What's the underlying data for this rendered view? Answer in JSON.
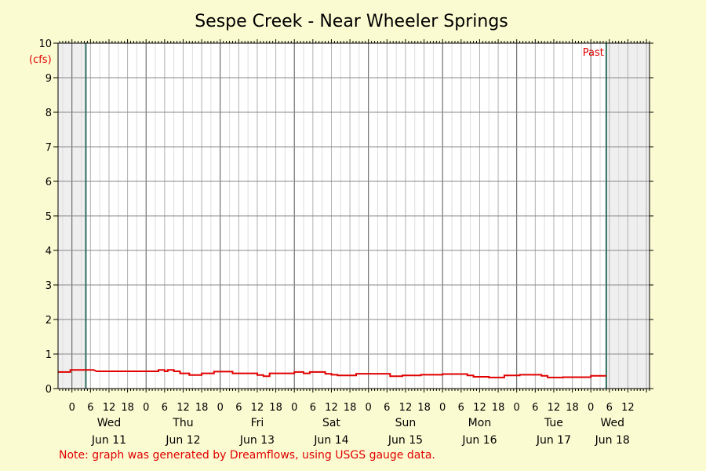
{
  "chart_data": {
    "type": "line",
    "title": "Sespe Creek - Near Wheeler Springs",
    "ylabel": "(cfs)",
    "ylim": [
      0,
      10
    ],
    "yticks": [
      0,
      1,
      2,
      3,
      4,
      5,
      6,
      7,
      8,
      9,
      10
    ],
    "x_unit": "hours since Jun 10 00:00",
    "xlim": [
      -4.5,
      187
    ],
    "x_tick_labels": [
      {
        "x": 0,
        "label": "0"
      },
      {
        "x": 6,
        "label": "6"
      },
      {
        "x": 12,
        "label": "12"
      },
      {
        "x": 18,
        "label": "18"
      },
      {
        "x": 24,
        "label": "0"
      },
      {
        "x": 30,
        "label": "6"
      },
      {
        "x": 36,
        "label": "12"
      },
      {
        "x": 42,
        "label": "18"
      },
      {
        "x": 48,
        "label": "0"
      },
      {
        "x": 54,
        "label": "6"
      },
      {
        "x": 60,
        "label": "12"
      },
      {
        "x": 66,
        "label": "18"
      },
      {
        "x": 72,
        "label": "0"
      },
      {
        "x": 78,
        "label": "6"
      },
      {
        "x": 84,
        "label": "12"
      },
      {
        "x": 90,
        "label": "18"
      },
      {
        "x": 96,
        "label": "0"
      },
      {
        "x": 102,
        "label": "6"
      },
      {
        "x": 108,
        "label": "12"
      },
      {
        "x": 114,
        "label": "18"
      },
      {
        "x": 120,
        "label": "0"
      },
      {
        "x": 126,
        "label": "6"
      },
      {
        "x": 132,
        "label": "12"
      },
      {
        "x": 138,
        "label": "18"
      },
      {
        "x": 144,
        "label": "0"
      },
      {
        "x": 150,
        "label": "6"
      },
      {
        "x": 156,
        "label": "12"
      },
      {
        "x": 162,
        "label": "18"
      },
      {
        "x": 168,
        "label": "0"
      },
      {
        "x": 174,
        "label": "6"
      },
      {
        "x": 180,
        "label": "12"
      }
    ],
    "day_labels": [
      {
        "x": 12,
        "weekday": "Wed",
        "date": "Jun 11"
      },
      {
        "x": 36,
        "weekday": "Thu",
        "date": "Jun 12"
      },
      {
        "x": 60,
        "weekday": "Fri",
        "date": "Jun 13"
      },
      {
        "x": 84,
        "weekday": "Sat",
        "date": "Jun 14"
      },
      {
        "x": 108,
        "weekday": "Sun",
        "date": "Jun 15"
      },
      {
        "x": 132,
        "weekday": "Mon",
        "date": "Jun 16"
      },
      {
        "x": 156,
        "weekday": "Tue",
        "date": "Jun 17"
      },
      {
        "x": 175,
        "weekday": "Wed",
        "date": "Jun 18"
      }
    ],
    "past_label": "Past",
    "shaded_before": 4.5,
    "shaded_after": 173,
    "grid": true,
    "series": [
      {
        "color": "#e00000",
        "x": [
          -4.5,
          -0.5,
          -0.5,
          7,
          7,
          8,
          8,
          24,
          24,
          28,
          28,
          30,
          30,
          31,
          31,
          33,
          33,
          35,
          35,
          38,
          38,
          42,
          42,
          46,
          46,
          52,
          52,
          60,
          60,
          62,
          62,
          64,
          64,
          72,
          72,
          75,
          75,
          77,
          77,
          82,
          82,
          84,
          84,
          86,
          86,
          92,
          92,
          97,
          97,
          103,
          103,
          107,
          107,
          113,
          113,
          120,
          120,
          128,
          128,
          130,
          130,
          135,
          135,
          140,
          140,
          145,
          145,
          152,
          152,
          154,
          154,
          159,
          159,
          168,
          168,
          173
        ],
        "values": [
          0.48,
          0.48,
          0.54,
          0.54,
          0.54,
          0.5,
          0.5,
          0.5,
          0.5,
          0.5,
          0.54,
          0.54,
          0.5,
          0.5,
          0.54,
          0.54,
          0.5,
          0.5,
          0.44,
          0.44,
          0.39,
          0.39,
          0.44,
          0.44,
          0.49,
          0.49,
          0.44,
          0.44,
          0.39,
          0.39,
          0.36,
          0.36,
          0.44,
          0.44,
          0.48,
          0.48,
          0.44,
          0.44,
          0.48,
          0.48,
          0.43,
          0.43,
          0.4,
          0.4,
          0.38,
          0.38,
          0.43,
          0.43,
          0.43,
          0.43,
          0.36,
          0.36,
          0.38,
          0.38,
          0.4,
          0.4,
          0.42,
          0.42,
          0.38,
          0.38,
          0.34,
          0.34,
          0.32,
          0.32,
          0.38,
          0.38,
          0.4,
          0.4,
          0.37,
          0.37,
          0.32,
          0.32,
          0.33,
          0.33,
          0.37,
          0.37
        ]
      }
    ]
  },
  "note": "Note: graph was generated by Dreamflows, using USGS gauge data."
}
